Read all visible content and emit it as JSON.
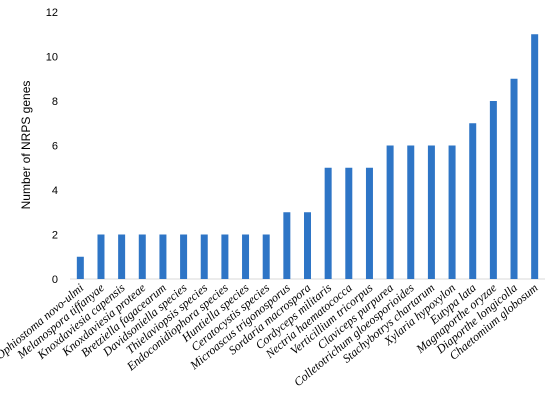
{
  "chart_data": {
    "type": "bar",
    "title": "",
    "xlabel": "",
    "ylabel": "Number of NRPS genes",
    "ylim": [
      0,
      12
    ],
    "yticks": [
      0,
      2,
      4,
      6,
      8,
      10,
      12
    ],
    "grid": false,
    "bar_color": "#2E75C6",
    "categories": [
      "Ophiostoma novo-ulmi",
      "Melanospora tiffanyae",
      "Knoxdaviesia capensis",
      "Knoxdaviesia proteae",
      "Bretziella fagacearum",
      "Davidsoniella species",
      "Thielaviopsis species",
      "Endoconidiophora species",
      "Huntiella species",
      "Ceratocystis species",
      "Microascus trigonosporus",
      "Sordaria macrospora",
      "Cordyceps militaris",
      "Nectria haematococca",
      "Verticillium tricorpus",
      "Claviceps purpurea",
      "Colletotrichum gloeosporioides",
      "Stachybotrys chartarum",
      "Xylaria hypoxylon",
      "Eutypa lata",
      "Magnaporthe oryzae",
      "Diaporthe longicolla",
      "Chaetomium globosum"
    ],
    "values": [
      1,
      2,
      2,
      2,
      2,
      2,
      2,
      2,
      2,
      2,
      3,
      3,
      5,
      5,
      5,
      6,
      6,
      6,
      6,
      7,
      8,
      9,
      11
    ]
  }
}
